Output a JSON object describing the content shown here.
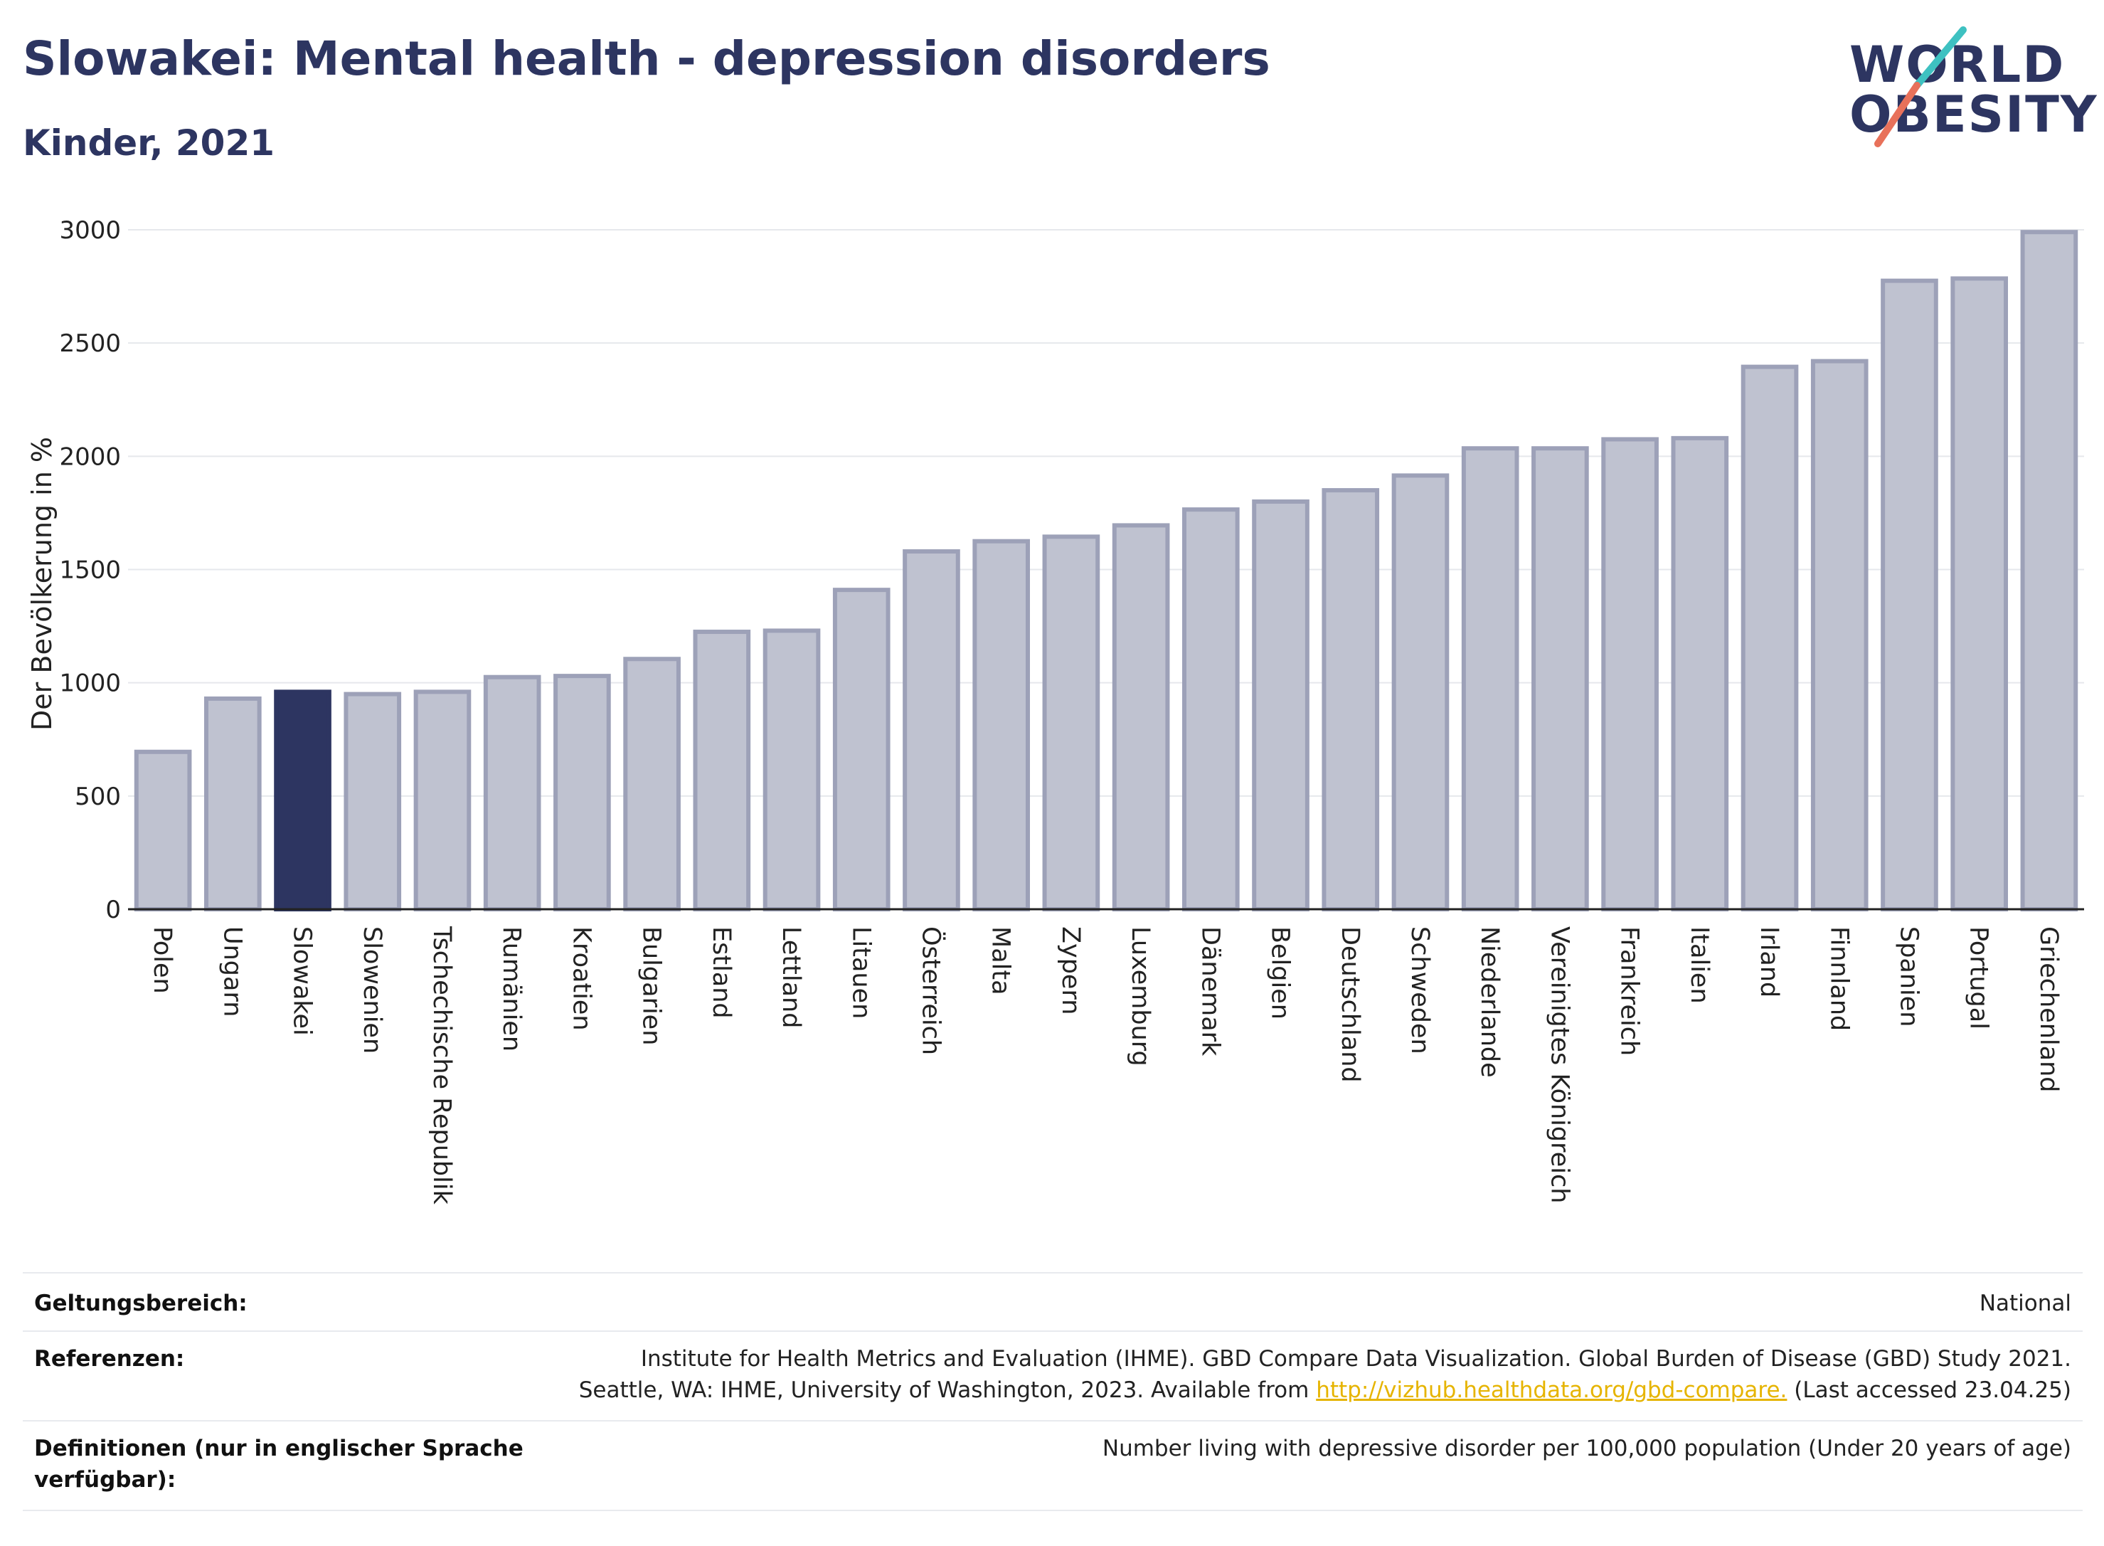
{
  "header": {
    "title": "Slowakei: Mental health - depression disorders",
    "subtitle": "Kinder, 2021"
  },
  "logo": {
    "line1": "WORLD",
    "line2": "OBESITY"
  },
  "chart_data": {
    "type": "bar",
    "title": "Slowakei: Mental health - depression disorders",
    "subtitle": "Kinder, 2021",
    "xlabel": "",
    "ylabel": "Der Bevölkerung in %",
    "ylim": [
      0,
      3000
    ],
    "yticks": [
      0,
      500,
      1000,
      1500,
      2000,
      2500,
      3000
    ],
    "grid": true,
    "highlight": "Slowakei",
    "colors": {
      "bar": "#bfc2d0",
      "bar_border": "#9da1b8",
      "highlight": "#2d3561"
    },
    "categories": [
      "Polen",
      "Ungarn",
      "Slowakei",
      "Slowenien",
      "Tschechische Republik",
      "Rumänien",
      "Kroatien",
      "Bulgarien",
      "Estland",
      "Lettland",
      "Litauen",
      "Österreich",
      "Malta",
      "Zypern",
      "Luxemburg",
      "Dänemark",
      "Belgien",
      "Deutschland",
      "Schweden",
      "Niederlande",
      "Vereinigtes Königreich",
      "Frankreich",
      "Italien",
      "Irland",
      "Finnland",
      "Spanien",
      "Portugal",
      "Griechenland"
    ],
    "values": [
      695,
      930,
      960,
      950,
      960,
      1025,
      1030,
      1105,
      1225,
      1230,
      1410,
      1580,
      1625,
      1645,
      1695,
      1765,
      1800,
      1850,
      1915,
      2035,
      2035,
      2075,
      2080,
      2395,
      2420,
      2775,
      2785,
      2990
    ]
  },
  "meta": {
    "scope_label": "Geltungsbereich:",
    "scope_value": "National",
    "references_label": "Referenzen:",
    "references_line1": "Institute for Health Metrics and Evaluation (IHME). GBD Compare Data Visualization. Global Burden of Disease (GBD) Study 2021.",
    "references_line2_pre": "Seattle, WA: IHME, University of Washington, 2023. Available from ",
    "references_link": "http://vizhub.healthdata.org/gbd-compare.",
    "references_line2_post": " (Last accessed 23.04.25)",
    "definitions_label_line1": "Definitionen (nur in englischer Sprache",
    "definitions_label_line2": "verfügbar):",
    "definitions_value": "Number living with depressive disorder per 100,000 population (Under 20 years of age)"
  }
}
